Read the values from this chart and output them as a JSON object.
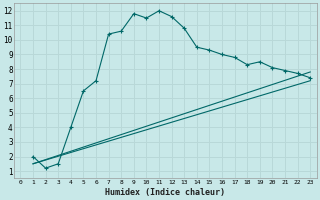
{
  "title": "",
  "xlabel": "Humidex (Indice chaleur)",
  "bg_color": "#c8e8e8",
  "grid_color": "#b8d8d8",
  "line_color": "#006868",
  "xlim": [
    -0.5,
    23.5
  ],
  "ylim": [
    0.5,
    12.5
  ],
  "xticks": [
    0,
    1,
    2,
    3,
    4,
    5,
    6,
    7,
    8,
    9,
    10,
    11,
    12,
    13,
    14,
    15,
    16,
    17,
    18,
    19,
    20,
    21,
    22,
    23
  ],
  "yticks": [
    1,
    2,
    3,
    4,
    5,
    6,
    7,
    8,
    9,
    10,
    11,
    12
  ],
  "curve1_x": [
    1,
    2,
    3,
    4,
    5,
    6,
    7,
    8,
    9,
    10,
    11,
    12,
    13,
    14,
    15,
    16,
    17,
    18,
    19,
    20,
    21,
    22,
    23
  ],
  "curve1_y": [
    2.0,
    1.2,
    1.5,
    4.0,
    6.5,
    7.2,
    10.4,
    10.6,
    11.8,
    11.5,
    12.0,
    11.6,
    10.8,
    9.5,
    9.3,
    9.0,
    8.8,
    8.3,
    8.5,
    8.1,
    7.9,
    7.7,
    7.4
  ],
  "curve2_x": [
    1,
    23
  ],
  "curve2_y": [
    1.5,
    7.8
  ],
  "curve3_x": [
    1,
    23
  ],
  "curve3_y": [
    1.5,
    7.2
  ]
}
